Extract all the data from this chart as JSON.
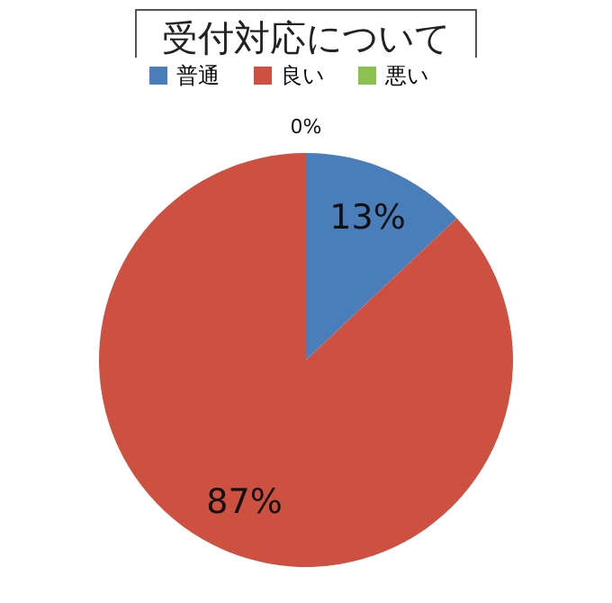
{
  "chart_data": {
    "type": "pie",
    "title": "受付対応について",
    "categories": [
      "普通",
      "良い",
      "悪い"
    ],
    "values": [
      13,
      87,
      0
    ],
    "colors": [
      "#4a7ebb",
      "#cd5040",
      "#8cc152"
    ],
    "value_labels": [
      "13%",
      "87%",
      "0%"
    ],
    "legend": "top"
  }
}
